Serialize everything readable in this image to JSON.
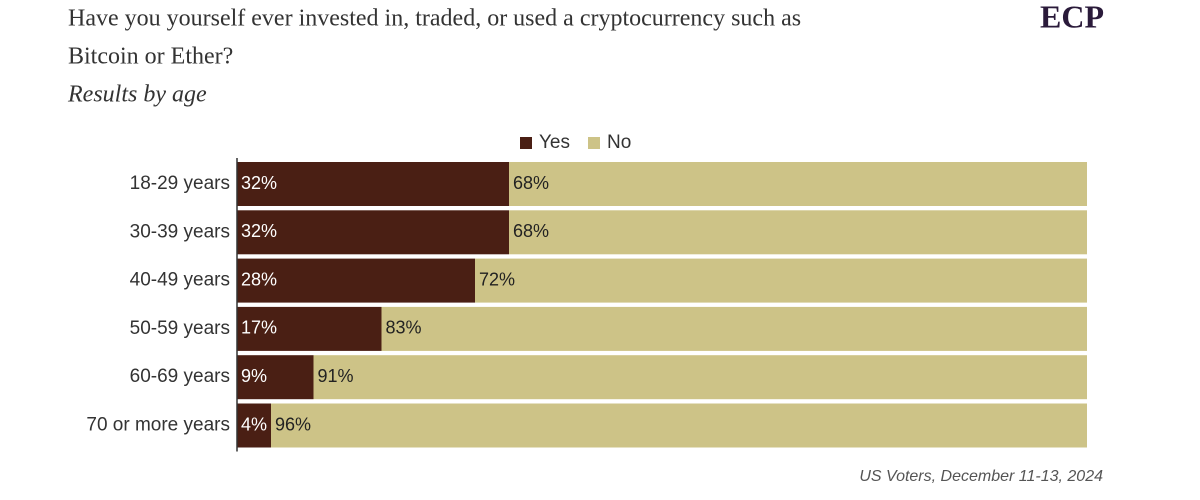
{
  "chart_data": {
    "type": "stacked-bar-horizontal",
    "title": "Have you yourself ever invested in, traded, or used a cryptocurrency such as Bitcoin or Ether?",
    "subtitle": "Results by age",
    "logo": "ECP",
    "source": "US Voters, December 11-13, 2024",
    "categories": [
      "18-29 years",
      "30-39 years",
      "40-49 years",
      "50-59 years",
      "60-69 years",
      "70 or more years"
    ],
    "series": [
      {
        "name": "Yes",
        "color": "#4a1f14",
        "values": [
          32,
          32,
          28,
          17,
          9,
          4
        ],
        "value_labels": [
          "32%",
          "32%",
          "28%",
          "17%",
          "9%",
          "4%"
        ]
      },
      {
        "name": "No",
        "color": "#cdc387",
        "values": [
          68,
          68,
          72,
          83,
          91,
          96
        ],
        "value_labels": [
          "68%",
          "68%",
          "72%",
          "83%",
          "91%",
          "96%"
        ]
      }
    ],
    "xlim": [
      0,
      100
    ],
    "legend": "top"
  }
}
